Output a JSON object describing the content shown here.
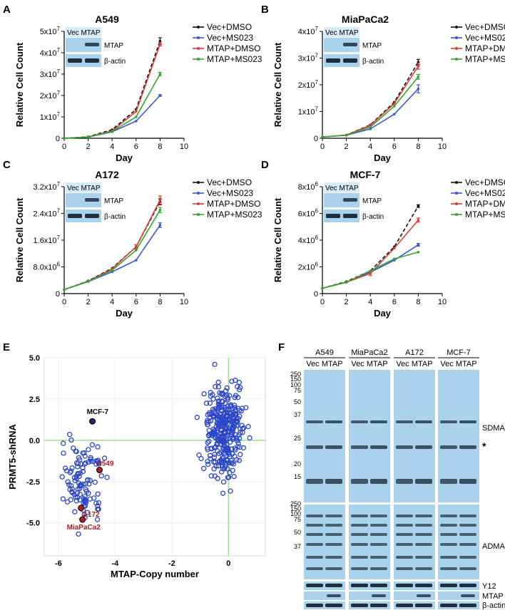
{
  "colors": {
    "vec_dmso": "#111111",
    "vec_ms023": "#3a55d8",
    "mtap_dmso": "#e23b35",
    "mtap_ms023": "#2fa82f",
    "scatter": "#2b46c9",
    "highlight": "#b01e1e",
    "guide": "#9ddf8f",
    "blot_bg": "#a9d3ec",
    "band": "#1f2d3d"
  },
  "blot_inset": {
    "header": "Vec MTAP",
    "row1": "MTAP",
    "row2": "β-actin"
  },
  "legend_labels": [
    "Vec+DMSO",
    "Vec+MS023",
    "MTAP+DMSO",
    "MTAP+MS023"
  ],
  "chart_data": [
    {
      "panel": "A",
      "type": "line",
      "title": "A549",
      "xlabel": "Day",
      "ylabel": "Relative Cell Count",
      "xlim": [
        0,
        10
      ],
      "ylim": [
        0,
        50000000
      ],
      "xticks": [
        "0",
        "2",
        "4",
        "6",
        "8",
        "10"
      ],
      "yticks": [
        {
          "base": "0",
          "exp": ""
        },
        {
          "base": "1x10",
          "exp": "7"
        },
        {
          "base": "2x10",
          "exp": "7"
        },
        {
          "base": "3x10",
          "exp": "7"
        },
        {
          "base": "4x10",
          "exp": "7"
        },
        {
          "base": "5x10",
          "exp": "7"
        }
      ],
      "x": [
        0,
        2,
        4,
        6,
        8
      ],
      "series": [
        {
          "name": "Vec+DMSO",
          "values": [
            0,
            700000,
            4000000,
            13500000,
            45500000
          ],
          "err": [
            0,
            0,
            0,
            0,
            1500000
          ]
        },
        {
          "name": "Vec+MS023",
          "values": [
            0,
            500000,
            3000000,
            8000000,
            20000000
          ],
          "err": [
            0,
            0,
            0,
            0,
            400000
          ]
        },
        {
          "name": "MTAP+DMSO",
          "values": [
            0,
            600000,
            3500000,
            12500000,
            44000000
          ],
          "err": [
            0,
            0,
            0,
            0,
            800000
          ]
        },
        {
          "name": "MTAP+MS023",
          "values": [
            0,
            550000,
            3200000,
            10000000,
            30000000
          ],
          "err": [
            0,
            0,
            0,
            0,
            800000
          ]
        }
      ]
    },
    {
      "panel": "B",
      "type": "line",
      "title": "MiaPaCa2",
      "xlabel": "Day",
      "ylabel": "Relative Cell Count",
      "xlim": [
        0,
        10
      ],
      "ylim": [
        0,
        40000000
      ],
      "xticks": [
        "0",
        "2",
        "4",
        "6",
        "8",
        "10"
      ],
      "yticks": [
        {
          "base": "0",
          "exp": ""
        },
        {
          "base": "1x10",
          "exp": "7"
        },
        {
          "base": "2x10",
          "exp": "7"
        },
        {
          "base": "3x10",
          "exp": "7"
        },
        {
          "base": "4x10",
          "exp": "7"
        }
      ],
      "x": [
        0,
        2,
        4,
        6,
        8
      ],
      "series": [
        {
          "name": "Vec+DMSO",
          "values": [
            500000,
            1200000,
            5000000,
            13500000,
            28500000
          ],
          "err": [
            0,
            0,
            0,
            0,
            1000000
          ]
        },
        {
          "name": "Vec+MS023",
          "values": [
            500000,
            1100000,
            3500000,
            9000000,
            18500000
          ],
          "err": [
            0,
            0,
            0,
            0,
            1500000
          ]
        },
        {
          "name": "MTAP+DMSO",
          "values": [
            500000,
            1200000,
            4800000,
            13000000,
            27000000
          ],
          "err": [
            0,
            0,
            0,
            0,
            1200000
          ]
        },
        {
          "name": "MTAP+MS023",
          "values": [
            500000,
            1100000,
            4200000,
            12000000,
            23000000
          ],
          "err": [
            0,
            0,
            0,
            0,
            900000
          ]
        }
      ]
    },
    {
      "panel": "C",
      "type": "line",
      "title": "A172",
      "xlabel": "Day",
      "ylabel": "Relative Cell Count",
      "xlim": [
        0,
        10
      ],
      "ylim": [
        0,
        32000000
      ],
      "xticks": [
        "0",
        "2",
        "4",
        "6",
        "8",
        "10"
      ],
      "yticks": [
        {
          "base": "0",
          "exp": ""
        },
        {
          "base": "8.0x10",
          "exp": "6"
        },
        {
          "base": "1.6x10",
          "exp": "7"
        },
        {
          "base": "2.4x10",
          "exp": "7"
        },
        {
          "base": "3.2x10",
          "exp": "7"
        }
      ],
      "x": [
        0,
        2,
        4,
        6,
        8
      ],
      "series": [
        {
          "name": "Vec+DMSO",
          "values": [
            1200000,
            3800000,
            7600000,
            14000000,
            27500000
          ],
          "err": [
            0,
            0,
            0,
            600000,
            900000
          ]
        },
        {
          "name": "Vec+MS023",
          "values": [
            1200000,
            3600000,
            6500000,
            10000000,
            20500000
          ],
          "err": [
            0,
            0,
            0,
            0,
            700000
          ]
        },
        {
          "name": "MTAP+DMSO",
          "values": [
            1200000,
            3700000,
            7400000,
            14000000,
            28000000
          ],
          "err": [
            0,
            0,
            0,
            600000,
            1200000
          ]
        },
        {
          "name": "MTAP+MS023",
          "values": [
            1200000,
            3600000,
            7000000,
            13000000,
            25000000
          ],
          "err": [
            0,
            0,
            0,
            0,
            800000
          ]
        }
      ]
    },
    {
      "panel": "D",
      "type": "line",
      "title": "MCF-7",
      "xlabel": "Day",
      "ylabel": "Relative Cell Count",
      "xlim": [
        0,
        10
      ],
      "ylim": [
        0,
        8000000
      ],
      "xticks": [
        "0",
        "2",
        "4",
        "6",
        "8",
        "10"
      ],
      "yticks": [
        {
          "base": "0",
          "exp": ""
        },
        {
          "base": "2x10",
          "exp": "6"
        },
        {
          "base": "4x10",
          "exp": "6"
        },
        {
          "base": "6x10",
          "exp": "6"
        },
        {
          "base": "8x10",
          "exp": "6"
        }
      ],
      "x": [
        0,
        2,
        4,
        6,
        8
      ],
      "series": [
        {
          "name": "Vec+DMSO",
          "values": [
            400000,
            900000,
            1700000,
            3500000,
            6550000
          ],
          "err": [
            0,
            0,
            0,
            0,
            100000
          ]
        },
        {
          "name": "Vec+MS023",
          "values": [
            400000,
            850000,
            1600000,
            2500000,
            3650000
          ],
          "err": [
            0,
            0,
            0,
            0,
            100000
          ]
        },
        {
          "name": "MTAP+DMSO",
          "values": [
            400000,
            850000,
            1500000,
            3400000,
            5500000
          ],
          "err": [
            0,
            0,
            150000,
            0,
            150000
          ]
        },
        {
          "name": "MTAP+MS023",
          "values": [
            400000,
            850000,
            1700000,
            2600000,
            3100000
          ],
          "err": [
            0,
            0,
            0,
            0,
            0
          ]
        }
      ]
    },
    {
      "panel": "E",
      "type": "scatter",
      "xlabel": "MTAP-Copy number",
      "ylabel": "PRMT5-shRNA",
      "xlim": [
        -6.5,
        1.3
      ],
      "ylim": [
        -7,
        5
      ],
      "xticks": [
        "-6",
        "-4",
        "-2",
        "0"
      ],
      "yticks": [
        "5.0",
        "2.5",
        "0.0",
        "-2.5",
        "-5.0"
      ],
      "highlighted": [
        {
          "label": "MCF-7",
          "x": -4.8,
          "y": 1.15
        },
        {
          "label": "A549",
          "x": -4.55,
          "y": -1.8
        },
        {
          "label": "A172",
          "x": -5.2,
          "y": -4.1
        },
        {
          "label": "MiaPaCa2",
          "x": -5.15,
          "y": -4.8
        }
      ]
    },
    {
      "panel": "F",
      "type": "table",
      "blots": [
        {
          "cell": "A549",
          "lanes": "Vec MTAP"
        },
        {
          "cell": "MiaPaCa2",
          "lanes": "Vec MTAP"
        },
        {
          "cell": "A172",
          "lanes": "Vec MTAP"
        },
        {
          "cell": "MCF-7",
          "lanes": "Vec MTAP"
        }
      ],
      "markers": [
        "250",
        "150",
        "100",
        "75",
        "50",
        "37",
        "25",
        "20",
        "15",
        "250",
        "150",
        "100",
        "75",
        "50",
        "37"
      ],
      "row_labels": [
        "SDMA",
        "*",
        "ADMA",
        "Y12",
        "MTAP",
        "β-actin"
      ]
    }
  ]
}
